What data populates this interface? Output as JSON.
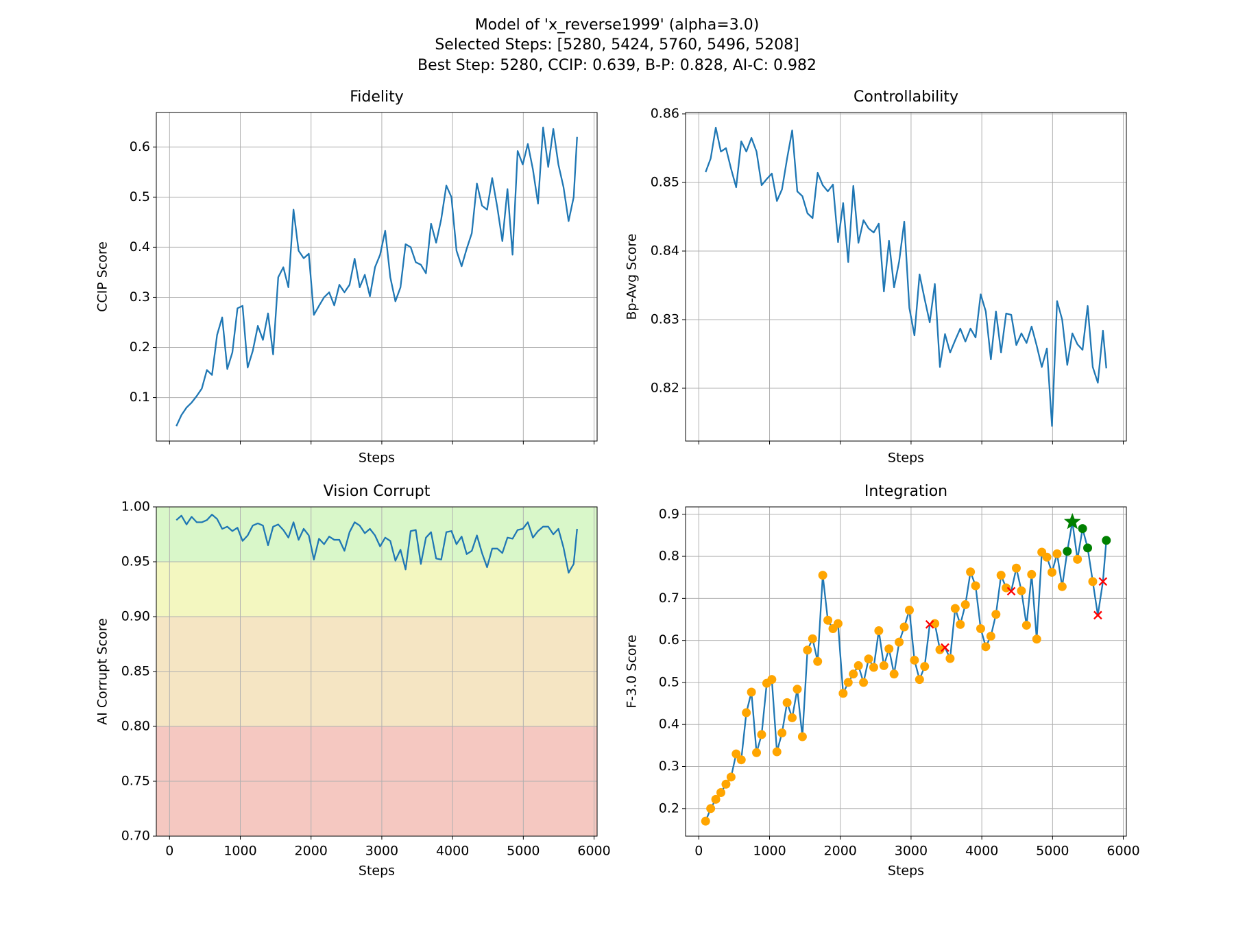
{
  "figure": {
    "title_lines": [
      "Model of 'x_reverse1999' (alpha=3.0)",
      "Selected Steps: [5280, 5424, 5760, 5496, 5208]",
      "Best Step: 5280, CCIP: 0.639, B-P: 0.828, AI-C: 0.982"
    ]
  },
  "chart_data": [
    {
      "type": "line",
      "title": "Fidelity",
      "x_label": "Steps",
      "y_label": "CCIP Score",
      "x": [
        96,
        168,
        240,
        312,
        384,
        456,
        528,
        600,
        672,
        744,
        816,
        888,
        960,
        1032,
        1104,
        1176,
        1248,
        1320,
        1392,
        1464,
        1536,
        1608,
        1680,
        1752,
        1824,
        1896,
        1968,
        2040,
        2112,
        2184,
        2256,
        2328,
        2400,
        2472,
        2544,
        2616,
        2688,
        2760,
        2832,
        2904,
        2976,
        3048,
        3120,
        3192,
        3264,
        3336,
        3408,
        3480,
        3552,
        3624,
        3696,
        3768,
        3840,
        3912,
        3984,
        4056,
        4128,
        4200,
        4272,
        4344,
        4416,
        4488,
        4560,
        4632,
        4704,
        4776,
        4848,
        4920,
        4992,
        5064,
        5136,
        5208,
        5280,
        5352,
        5424,
        5496,
        5568,
        5640,
        5712,
        5760
      ],
      "series": [
        {
          "color": "#1f77b4",
          "values": [
            0.043,
            0.065,
            0.08,
            0.09,
            0.103,
            0.118,
            0.155,
            0.145,
            0.225,
            0.26,
            0.157,
            0.19,
            0.278,
            0.283,
            0.16,
            0.193,
            0.243,
            0.215,
            0.268,
            0.186,
            0.34,
            0.36,
            0.32,
            0.475,
            0.393,
            0.378,
            0.387,
            0.265,
            0.283,
            0.3,
            0.31,
            0.284,
            0.325,
            0.31,
            0.325,
            0.377,
            0.32,
            0.345,
            0.302,
            0.36,
            0.385,
            0.433,
            0.34,
            0.292,
            0.32,
            0.406,
            0.4,
            0.37,
            0.365,
            0.348,
            0.447,
            0.409,
            0.456,
            0.523,
            0.5,
            0.393,
            0.362,
            0.397,
            0.428,
            0.527,
            0.483,
            0.475,
            0.538,
            0.48,
            0.412,
            0.516,
            0.385,
            0.592,
            0.565,
            0.606,
            0.555,
            0.487,
            0.639,
            0.56,
            0.636,
            0.565,
            0.52,
            0.452,
            0.5,
            0.62
          ]
        }
      ],
      "xlim": [
        -187.2,
        6043.2
      ],
      "xticks": [
        0,
        1000,
        2000,
        3000,
        4000,
        5000,
        6000
      ],
      "xtick_labels": false,
      "ylim": [
        0.0132,
        0.6688
      ],
      "yticks": [
        0.1,
        0.2,
        0.3,
        0.4,
        0.5,
        0.6
      ],
      "grid": true
    },
    {
      "type": "line",
      "title": "Controllability",
      "x_label": "Steps",
      "y_label": "Bp-Avg Score",
      "x": [
        96,
        168,
        240,
        312,
        384,
        456,
        528,
        600,
        672,
        744,
        816,
        888,
        960,
        1032,
        1104,
        1176,
        1248,
        1320,
        1392,
        1464,
        1536,
        1608,
        1680,
        1752,
        1824,
        1896,
        1968,
        2040,
        2112,
        2184,
        2256,
        2328,
        2400,
        2472,
        2544,
        2616,
        2688,
        2760,
        2832,
        2904,
        2976,
        3048,
        3120,
        3192,
        3264,
        3336,
        3408,
        3480,
        3552,
        3624,
        3696,
        3768,
        3840,
        3912,
        3984,
        4056,
        4128,
        4200,
        4272,
        4344,
        4416,
        4488,
        4560,
        4632,
        4704,
        4776,
        4848,
        4920,
        4992,
        5064,
        5136,
        5208,
        5280,
        5352,
        5424,
        5496,
        5568,
        5640,
        5712,
        5760
      ],
      "series": [
        {
          "color": "#1f77b4",
          "values": [
            0.8515,
            0.8535,
            0.858,
            0.8545,
            0.855,
            0.852,
            0.8493,
            0.856,
            0.8545,
            0.8565,
            0.8545,
            0.8496,
            0.8505,
            0.8513,
            0.8473,
            0.849,
            0.8535,
            0.8576,
            0.8487,
            0.848,
            0.8455,
            0.8448,
            0.8514,
            0.8496,
            0.8487,
            0.8497,
            0.8413,
            0.847,
            0.8384,
            0.8495,
            0.8412,
            0.8445,
            0.8433,
            0.8427,
            0.844,
            0.8341,
            0.8415,
            0.8347,
            0.8385,
            0.8443,
            0.8317,
            0.8277,
            0.8366,
            0.833,
            0.8296,
            0.8352,
            0.8231,
            0.8279,
            0.8252,
            0.827,
            0.8287,
            0.8268,
            0.8287,
            0.8274,
            0.8337,
            0.8312,
            0.8242,
            0.8312,
            0.8252,
            0.8309,
            0.8307,
            0.8263,
            0.828,
            0.8266,
            0.829,
            0.8262,
            0.8231,
            0.8258,
            0.8145,
            0.8327,
            0.83,
            0.8234,
            0.828,
            0.8264,
            0.8256,
            0.832,
            0.8231,
            0.8208,
            0.8284,
            0.8229
          ]
        }
      ],
      "xlim": [
        -187.2,
        6043.2
      ],
      "xticks": [
        0,
        1000,
        2000,
        3000,
        4000,
        5000,
        6000
      ],
      "xtick_labels": false,
      "ylim": [
        0.8123,
        0.8602
      ],
      "yticks": [
        0.82,
        0.83,
        0.84,
        0.85,
        0.86
      ],
      "grid": true
    },
    {
      "type": "line",
      "title": "Vision Corrupt",
      "x_label": "Steps",
      "y_label": "AI Corrupt Score",
      "x": [
        96,
        168,
        240,
        312,
        384,
        456,
        528,
        600,
        672,
        744,
        816,
        888,
        960,
        1032,
        1104,
        1176,
        1248,
        1320,
        1392,
        1464,
        1536,
        1608,
        1680,
        1752,
        1824,
        1896,
        1968,
        2040,
        2112,
        2184,
        2256,
        2328,
        2400,
        2472,
        2544,
        2616,
        2688,
        2760,
        2832,
        2904,
        2976,
        3048,
        3120,
        3192,
        3264,
        3336,
        3408,
        3480,
        3552,
        3624,
        3696,
        3768,
        3840,
        3912,
        3984,
        4056,
        4128,
        4200,
        4272,
        4344,
        4416,
        4488,
        4560,
        4632,
        4704,
        4776,
        4848,
        4920,
        4992,
        5064,
        5136,
        5208,
        5280,
        5352,
        5424,
        5496,
        5568,
        5640,
        5712,
        5760
      ],
      "series": [
        {
          "color": "#1f77b4",
          "values": [
            0.988,
            0.992,
            0.984,
            0.991,
            0.986,
            0.986,
            0.988,
            0.993,
            0.989,
            0.98,
            0.982,
            0.978,
            0.981,
            0.969,
            0.974,
            0.983,
            0.985,
            0.983,
            0.965,
            0.982,
            0.984,
            0.979,
            0.972,
            0.986,
            0.97,
            0.98,
            0.974,
            0.952,
            0.971,
            0.966,
            0.973,
            0.97,
            0.97,
            0.96,
            0.977,
            0.986,
            0.983,
            0.976,
            0.98,
            0.974,
            0.964,
            0.972,
            0.969,
            0.951,
            0.961,
            0.943,
            0.978,
            0.979,
            0.948,
            0.972,
            0.977,
            0.953,
            0.952,
            0.977,
            0.978,
            0.966,
            0.973,
            0.957,
            0.96,
            0.974,
            0.958,
            0.945,
            0.962,
            0.962,
            0.958,
            0.972,
            0.971,
            0.979,
            0.98,
            0.986,
            0.972,
            0.978,
            0.982,
            0.982,
            0.975,
            0.98,
            0.963,
            0.94,
            0.948,
            0.98
          ]
        }
      ],
      "bands": [
        {
          "from": 0.95,
          "to": 1.0,
          "color": "#d9f7c9"
        },
        {
          "from": 0.9,
          "to": 0.95,
          "color": "#f3f7c0"
        },
        {
          "from": 0.8,
          "to": 0.9,
          "color": "#f5e5c3"
        },
        {
          "from": 0.7,
          "to": 0.8,
          "color": "#f5c8c1"
        }
      ],
      "xlim": [
        -187.2,
        6043.2
      ],
      "xticks": [
        0,
        1000,
        2000,
        3000,
        4000,
        5000,
        6000
      ],
      "ylim": [
        0.7,
        1.0
      ],
      "yticks": [
        {
          "value": 0.7,
          "label": "0.70"
        },
        {
          "value": 0.75,
          "label": "0.75"
        },
        {
          "value": 0.8,
          "label": "0.80"
        },
        {
          "value": 0.85,
          "label": "0.85"
        },
        {
          "value": 0.9,
          "label": "0.90"
        },
        {
          "value": 0.95,
          "label": "0.95"
        },
        {
          "value": 1.0,
          "label": "1.00"
        }
      ],
      "grid": true
    },
    {
      "type": "line",
      "title": "Integration",
      "x_label": "Steps",
      "y_label": "F-3.0 Score",
      "x": [
        96,
        168,
        240,
        312,
        384,
        456,
        528,
        600,
        672,
        744,
        816,
        888,
        960,
        1032,
        1104,
        1176,
        1248,
        1320,
        1392,
        1464,
        1536,
        1608,
        1680,
        1752,
        1824,
        1896,
        1968,
        2040,
        2112,
        2184,
        2256,
        2328,
        2400,
        2472,
        2544,
        2616,
        2688,
        2760,
        2832,
        2904,
        2976,
        3048,
        3120,
        3192,
        3264,
        3336,
        3408,
        3480,
        3552,
        3624,
        3696,
        3768,
        3840,
        3912,
        3984,
        4056,
        4128,
        4200,
        4272,
        4344,
        4416,
        4488,
        4560,
        4632,
        4704,
        4776,
        4848,
        4920,
        4992,
        5064,
        5136,
        5208,
        5280,
        5352,
        5424,
        5496,
        5568,
        5640,
        5712,
        5760
      ],
      "series": [
        {
          "color": "#1f77b4",
          "marker_color": "orange",
          "values": [
            0.17,
            0.2,
            0.222,
            0.238,
            0.258,
            0.275,
            0.33,
            0.316,
            0.428,
            0.477,
            0.333,
            0.376,
            0.498,
            0.507,
            0.335,
            0.38,
            0.452,
            0.416,
            0.484,
            0.371,
            0.577,
            0.604,
            0.55,
            0.755,
            0.648,
            0.628,
            0.64,
            0.474,
            0.5,
            0.52,
            0.54,
            0.5,
            0.556,
            0.536,
            0.623,
            0.54,
            0.58,
            0.52,
            0.596,
            0.632,
            0.672,
            0.553,
            0.507,
            0.538,
            0.638,
            0.64,
            0.578,
            0.583,
            0.557,
            0.676,
            0.638,
            0.685,
            0.763,
            0.73,
            0.628,
            0.585,
            0.61,
            0.662,
            0.755,
            0.725,
            0.717,
            0.772,
            0.718,
            0.636,
            0.757,
            0.603,
            0.81,
            0.798,
            0.762,
            0.806,
            0.728,
            0.812,
            0.882,
            0.793,
            0.866,
            0.82,
            0.74,
            0.66,
            0.74,
            0.838
          ]
        }
      ],
      "highlights": [
        {
          "marker": "circle",
          "color": "green",
          "x": [
            5208,
            5424,
            5496,
            5760
          ],
          "values": [
            0.812,
            0.866,
            0.82,
            0.838
          ]
        },
        {
          "marker": "star",
          "color": "green",
          "x": [
            5280
          ],
          "values": [
            0.882
          ]
        },
        {
          "marker": "x",
          "color": "red",
          "x": [
            3264,
            3480,
            4416,
            5640,
            5712
          ],
          "values": [
            0.638,
            0.583,
            0.717,
            0.66,
            0.74
          ]
        }
      ],
      "xlim": [
        -187.2,
        6043.2
      ],
      "xticks": [
        0,
        1000,
        2000,
        3000,
        4000,
        5000,
        6000
      ],
      "ylim": [
        0.1344,
        0.9176
      ],
      "yticks": [
        0.2,
        0.3,
        0.4,
        0.5,
        0.6,
        0.7,
        0.8,
        0.9
      ],
      "grid": true
    }
  ]
}
